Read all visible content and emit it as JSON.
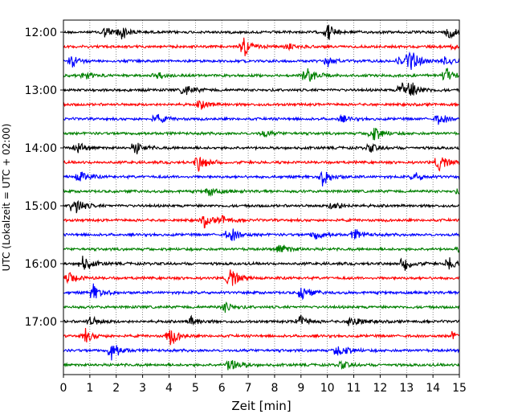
{
  "chart_data": {
    "type": "line",
    "title": "",
    "xlabel": "Zeit  [min]",
    "ylabel": "UTC (Lokalzeit = UTC + 02:00)",
    "xlim": [
      0,
      15
    ],
    "x_ticks": [
      "0",
      "1",
      "2",
      "3",
      "4",
      "5",
      "6",
      "7",
      "8",
      "9",
      "10",
      "11",
      "12",
      "13",
      "14",
      "15"
    ],
    "y_ticks": [
      "12:00",
      "13:00",
      "14:00",
      "15:00",
      "16:00",
      "17:00"
    ],
    "grid": "vertical dotted",
    "trace_minutes": 15,
    "color_cycle": [
      "#000000",
      "#ff0000",
      "#0000ff",
      "#008000"
    ],
    "traces": [
      {
        "start": "12:00",
        "events": [
          [
            1.5,
            0.55
          ],
          [
            2.1,
            0.7
          ],
          [
            10.0,
            0.75
          ],
          [
            14.6,
            0.8
          ]
        ]
      },
      {
        "start": "12:15",
        "events": [
          [
            6.8,
            0.9
          ],
          [
            8.5,
            0.25
          ],
          [
            14.8,
            0.3
          ]
        ]
      },
      {
        "start": "12:30",
        "events": [
          [
            0.3,
            0.45
          ],
          [
            10.0,
            0.4
          ],
          [
            12.7,
            0.35
          ],
          [
            13.1,
            1.0
          ],
          [
            14.4,
            0.35
          ]
        ]
      },
      {
        "start": "12:45",
        "events": [
          [
            0.8,
            0.4
          ],
          [
            3.5,
            0.35
          ],
          [
            9.2,
            0.9
          ],
          [
            14.5,
            0.6
          ]
        ]
      },
      {
        "start": "13:00",
        "events": [
          [
            4.6,
            0.5
          ],
          [
            12.8,
            0.8
          ],
          [
            13.2,
            0.55
          ]
        ]
      },
      {
        "start": "13:15",
        "events": [
          [
            5.2,
            0.45
          ]
        ]
      },
      {
        "start": "13:30",
        "events": [
          [
            3.5,
            0.4
          ],
          [
            10.5,
            0.3
          ],
          [
            14.2,
            0.55
          ]
        ]
      },
      {
        "start": "13:45",
        "events": [
          [
            7.5,
            0.35
          ],
          [
            11.7,
            0.8
          ]
        ]
      },
      {
        "start": "14:00",
        "events": [
          [
            0.5,
            0.45
          ],
          [
            2.7,
            0.55
          ],
          [
            11.6,
            0.4
          ]
        ]
      },
      {
        "start": "14:15",
        "events": [
          [
            5.1,
            0.75
          ],
          [
            14.2,
            0.75
          ]
        ]
      },
      {
        "start": "14:30",
        "events": [
          [
            0.6,
            0.6
          ],
          [
            9.8,
            0.75
          ],
          [
            13.3,
            0.35
          ]
        ]
      },
      {
        "start": "14:45",
        "events": [
          [
            5.5,
            0.4
          ],
          [
            15.0,
            0.3
          ]
        ]
      },
      {
        "start": "15:00",
        "events": [
          [
            0.4,
            0.9
          ],
          [
            10.2,
            0.5
          ]
        ]
      },
      {
        "start": "15:15",
        "events": [
          [
            5.3,
            0.55
          ],
          [
            6.0,
            0.35
          ]
        ]
      },
      {
        "start": "15:30",
        "events": [
          [
            6.3,
            0.7
          ],
          [
            9.5,
            0.45
          ],
          [
            11.0,
            0.5
          ]
        ]
      },
      {
        "start": "15:45",
        "events": [
          [
            8.2,
            0.55
          ],
          [
            15.0,
            0.3
          ]
        ]
      },
      {
        "start": "16:00",
        "events": [
          [
            0.7,
            0.75
          ],
          [
            12.9,
            0.6
          ],
          [
            14.6,
            0.6
          ]
        ]
      },
      {
        "start": "16:15",
        "events": [
          [
            0.2,
            0.55
          ],
          [
            6.3,
            0.9
          ]
        ]
      },
      {
        "start": "16:30",
        "events": [
          [
            1.1,
            0.75
          ],
          [
            9.0,
            0.7
          ]
        ]
      },
      {
        "start": "16:45",
        "events": [
          [
            6.1,
            0.5
          ]
        ]
      },
      {
        "start": "17:00",
        "events": [
          [
            1.0,
            0.45
          ],
          [
            4.8,
            0.45
          ],
          [
            8.9,
            0.6
          ],
          [
            10.9,
            0.65
          ]
        ]
      },
      {
        "start": "17:15",
        "events": [
          [
            0.8,
            0.6
          ],
          [
            4.0,
            0.9
          ],
          [
            14.7,
            0.3
          ]
        ]
      },
      {
        "start": "17:30",
        "events": [
          [
            1.8,
            0.85
          ],
          [
            10.4,
            0.8
          ]
        ]
      },
      {
        "start": "17:45",
        "events": [
          [
            6.3,
            0.75
          ],
          [
            10.5,
            0.35
          ]
        ]
      }
    ]
  }
}
